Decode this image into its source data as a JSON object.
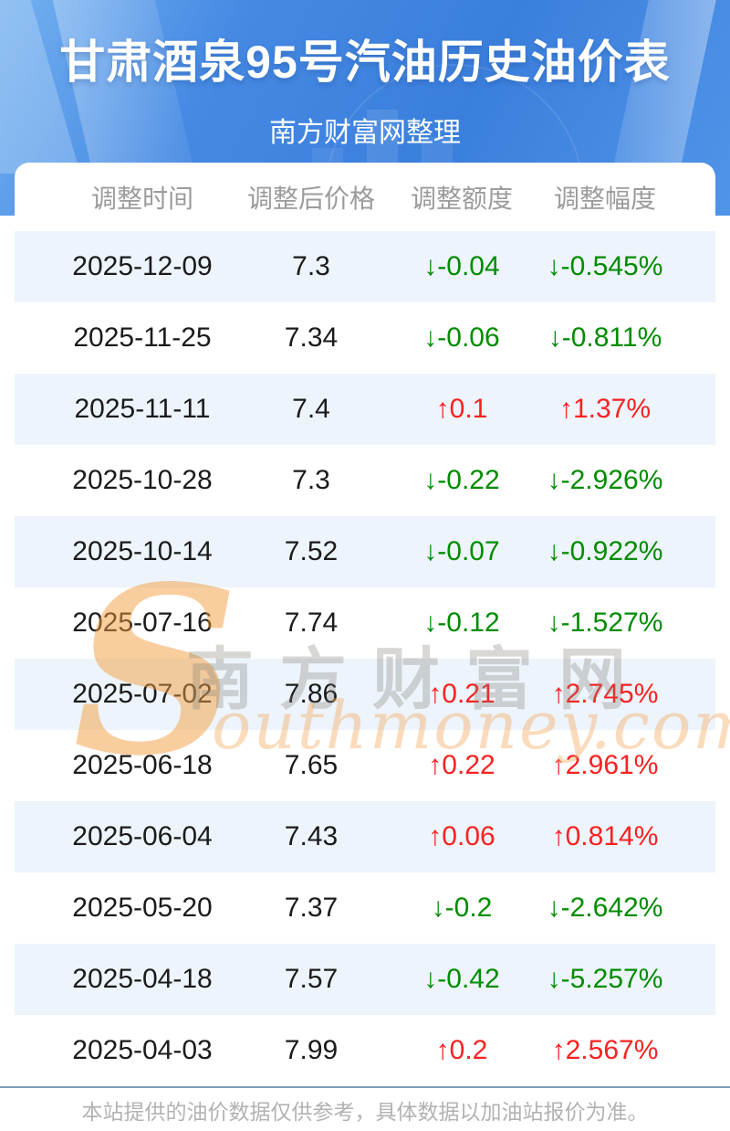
{
  "header": {
    "title": "甘肃酒泉95号汽油历史油价表",
    "subtitle": "南方财富网整理"
  },
  "table": {
    "columns": [
      "调整时间",
      "调整后价格",
      "调整额度",
      "调整幅度"
    ],
    "arrow_up": "↑",
    "arrow_down": "↓",
    "rows": [
      {
        "date": "2025-12-09",
        "price": "7.3",
        "change": "-0.04",
        "percent": "-0.545%",
        "direction": "down"
      },
      {
        "date": "2025-11-25",
        "price": "7.34",
        "change": "-0.06",
        "percent": "-0.811%",
        "direction": "down"
      },
      {
        "date": "2025-11-11",
        "price": "7.4",
        "change": "0.1",
        "percent": "1.37%",
        "direction": "up"
      },
      {
        "date": "2025-10-28",
        "price": "7.3",
        "change": "-0.22",
        "percent": "-2.926%",
        "direction": "down"
      },
      {
        "date": "2025-10-14",
        "price": "7.52",
        "change": "-0.07",
        "percent": "-0.922%",
        "direction": "down"
      },
      {
        "date": "2025-07-16",
        "price": "7.74",
        "change": "-0.12",
        "percent": "-1.527%",
        "direction": "down"
      },
      {
        "date": "2025-07-02",
        "price": "7.86",
        "change": "0.21",
        "percent": "2.745%",
        "direction": "up"
      },
      {
        "date": "2025-06-18",
        "price": "7.65",
        "change": "0.22",
        "percent": "2.961%",
        "direction": "up"
      },
      {
        "date": "2025-06-04",
        "price": "7.43",
        "change": "0.06",
        "percent": "0.814%",
        "direction": "up"
      },
      {
        "date": "2025-05-20",
        "price": "7.37",
        "change": "-0.2",
        "percent": "-2.642%",
        "direction": "down"
      },
      {
        "date": "2025-04-18",
        "price": "7.57",
        "change": "-0.42",
        "percent": "-5.257%",
        "direction": "down"
      },
      {
        "date": "2025-04-03",
        "price": "7.99",
        "change": "0.2",
        "percent": "2.567%",
        "direction": "up"
      }
    ]
  },
  "watermark": {
    "s": "S",
    "cn": "南方财富网",
    "en": "outhmoney.com"
  },
  "footer": {
    "note": "本站提供的油价数据仅供参考，具体数据以加油站报价为准。"
  },
  "colors": {
    "up_red": "#f82222",
    "down_green": "#008c00",
    "row_alt": "#edf4fb",
    "divider": "#7d9bb5",
    "hero_blue": "#4589e3"
  }
}
